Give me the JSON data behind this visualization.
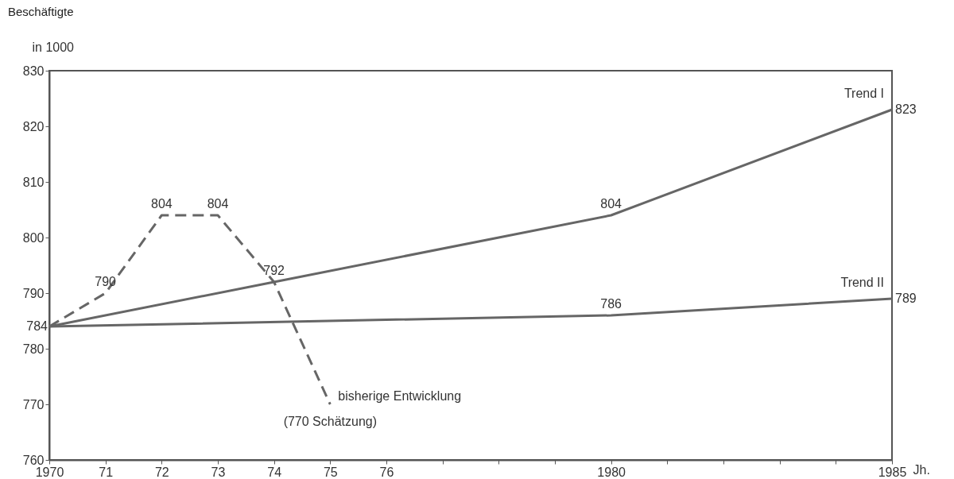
{
  "chart_data": {
    "type": "line",
    "title": "Beschäftigte",
    "ylabel": "in 1000",
    "xlabel": "Jh.",
    "xlim": [
      1970,
      1985
    ],
    "xticks": [
      1970,
      {
        "value": 1971,
        "label": "71"
      },
      {
        "value": 1972,
        "label": "72"
      },
      {
        "value": 1973,
        "label": "73"
      },
      {
        "value": 1974,
        "label": "74"
      },
      {
        "value": 1975,
        "label": "75"
      },
      {
        "value": 1976,
        "label": "76"
      },
      {
        "value": 1977,
        "label": null
      },
      {
        "value": 1978,
        "label": null
      },
      {
        "value": 1979,
        "label": null
      },
      1980,
      {
        "value": 1981,
        "label": null
      },
      {
        "value": 1982,
        "label": null
      },
      {
        "value": 1983,
        "label": null
      },
      {
        "value": 1984,
        "label": null
      },
      1985
    ],
    "ylim": [
      760,
      830
    ],
    "yticks": [
      760,
      770,
      780,
      790,
      800,
      810,
      820,
      830
    ],
    "grid": false,
    "marker": "none",
    "series": [
      {
        "name": "Trend I",
        "color": "#666666",
        "line_style": "solid",
        "x": [
          1970,
          1974,
          1980,
          1985
        ],
        "values": [
          784,
          792,
          804,
          823
        ],
        "value_labels": [
          "784",
          "792",
          "804",
          "823"
        ]
      },
      {
        "name": "Trend II",
        "color": "#666666",
        "line_style": "solid",
        "x": [
          1970,
          1980,
          1985
        ],
        "values": [
          784,
          786,
          789
        ],
        "value_labels": [
          null,
          "786",
          "789"
        ]
      },
      {
        "name": "bisherige Entwicklung",
        "color": "#666666",
        "line_style": "dashed",
        "x": [
          1970,
          1971,
          1972,
          1973,
          1974,
          1975
        ],
        "values": [
          784,
          790,
          804,
          804,
          792,
          770
        ],
        "value_labels": [
          null,
          "790",
          "804",
          "804",
          null,
          null
        ]
      }
    ],
    "annotations": [
      {
        "text": "(770 Schätzung)",
        "x": 1975,
        "y": 770
      }
    ]
  }
}
